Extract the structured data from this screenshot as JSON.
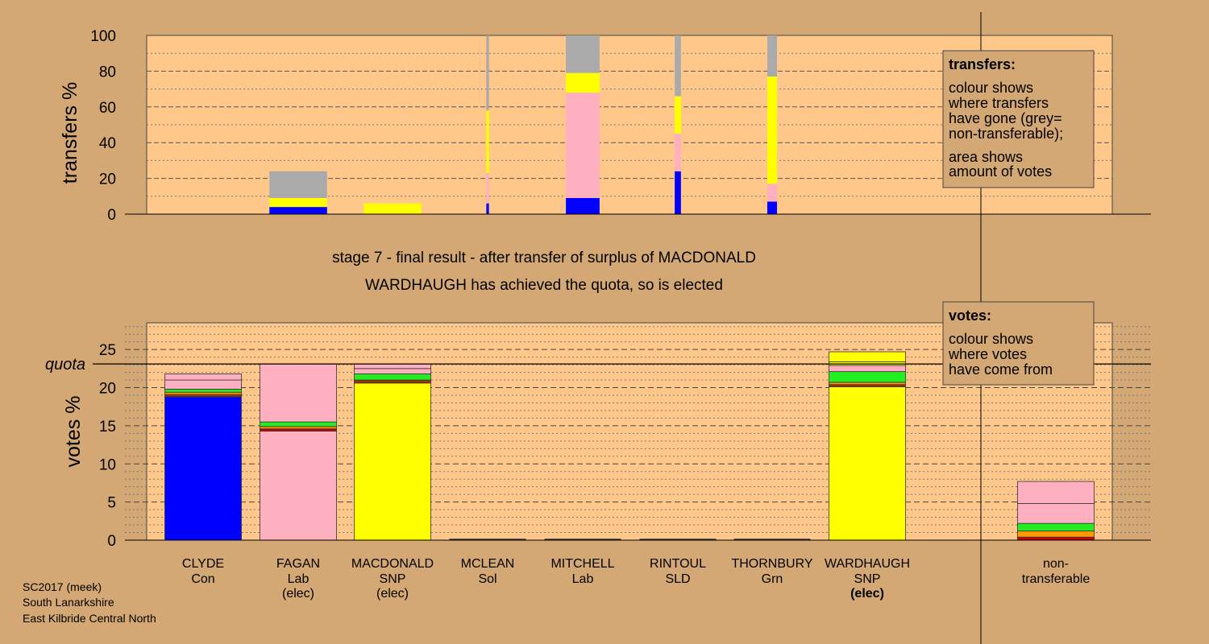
{
  "colors": {
    "page_bg": "#d4a874",
    "plot_bg": "#ffc88a",
    "con": "#0000ff",
    "lab": "#ffb0c0",
    "snp": "#ffff00",
    "grn": "#22ee22",
    "sld": "#ff9900",
    "sol": "#cc0000",
    "other": "#993300",
    "nontransferable": "#aaaaaa"
  },
  "stage_title": "stage 7 - final result - after transfer of surplus of MACDONALD",
  "stage_subtitle": "WARDHAUGH has achieved the quota, so is elected",
  "footer": {
    "line1": "SC2017 (meek)",
    "line2": "South Lanarkshire",
    "line3": "East Kilbride Central North"
  },
  "legend_transfers": {
    "title": "transfers:",
    "lines": [
      "colour shows",
      "where transfers",
      "have gone (grey=",
      "non-transferable);",
      "area shows",
      "amount of votes"
    ]
  },
  "legend_votes": {
    "title": "votes:",
    "lines": [
      "colour shows",
      "where votes",
      "have come from"
    ]
  },
  "chart_data": [
    {
      "type": "bar",
      "ylabel": "transfers %",
      "ylim": [
        0,
        100
      ],
      "yticks": [
        0,
        20,
        40,
        60,
        80,
        100
      ],
      "bars": [
        {
          "candidate": "FAGAN",
          "width_share": 0.65,
          "segments": [
            {
              "party": "con",
              "from": 0,
              "to": 4
            },
            {
              "party": "snp",
              "from": 4,
              "to": 9
            },
            {
              "party": "nontransferable",
              "from": 9,
              "to": 24
            }
          ]
        },
        {
          "candidate": "MACDONALD",
          "width_share": 0.65,
          "segments": [
            {
              "party": "snp",
              "from": 0,
              "to": 6
            }
          ]
        },
        {
          "candidate": "MCLEAN",
          "width_share": 0.03,
          "segments": [
            {
              "party": "con",
              "from": 0,
              "to": 6
            },
            {
              "party": "lab",
              "from": 6,
              "to": 23
            },
            {
              "party": "snp",
              "from": 23,
              "to": 58
            },
            {
              "party": "nontransferable",
              "from": 58,
              "to": 100
            }
          ]
        },
        {
          "candidate": "MITCHELL",
          "width_share": 0.38,
          "segments": [
            {
              "party": "con",
              "from": 0,
              "to": 9
            },
            {
              "party": "lab",
              "from": 9,
              "to": 68
            },
            {
              "party": "snp",
              "from": 68,
              "to": 79
            },
            {
              "party": "nontransferable",
              "from": 79,
              "to": 100
            }
          ]
        },
        {
          "candidate": "RINTOUL",
          "width_share": 0.07,
          "segments": [
            {
              "party": "con",
              "from": 0,
              "to": 24
            },
            {
              "party": "lab",
              "from": 24,
              "to": 45
            },
            {
              "party": "snp",
              "from": 45,
              "to": 66
            },
            {
              "party": "nontransferable",
              "from": 66,
              "to": 100
            }
          ]
        },
        {
          "candidate": "THORNBURY",
          "width_share": 0.11,
          "segments": [
            {
              "party": "con",
              "from": 0,
              "to": 7
            },
            {
              "party": "lab",
              "from": 7,
              "to": 17
            },
            {
              "party": "snp",
              "from": 17,
              "to": 77
            },
            {
              "party": "nontransferable",
              "from": 77,
              "to": 100
            }
          ]
        }
      ]
    },
    {
      "type": "bar",
      "ylabel": "votes %",
      "ylim": [
        0,
        28.5
      ],
      "yticks": [
        0,
        5,
        10,
        15,
        20,
        25
      ],
      "quota_label": "quota",
      "quota": 23.1,
      "candidates": [
        {
          "name": "CLYDE",
          "party": "Con",
          "status": "",
          "segments": [
            {
              "party": "con",
              "value": 18.8
            },
            {
              "party": "other",
              "value": 0.3
            },
            {
              "party": "sld",
              "value": 0.3
            },
            {
              "party": "grn",
              "value": 0.4
            },
            {
              "party": "lab",
              "value": 1.2
            },
            {
              "party": "lab",
              "value": 0.8
            }
          ]
        },
        {
          "name": "FAGAN",
          "party": "Lab",
          "status": "(elec)",
          "segments": [
            {
              "party": "lab",
              "value": 14.3
            },
            {
              "party": "sol",
              "value": 0.3
            },
            {
              "party": "sld",
              "value": 0.3
            },
            {
              "party": "grn",
              "value": 0.6
            },
            {
              "party": "lab",
              "value": 7.6
            }
          ]
        },
        {
          "name": "MACDONALD",
          "party": "SNP",
          "status": "(elec)",
          "segments": [
            {
              "party": "snp",
              "value": 20.6
            },
            {
              "party": "other",
              "value": 0.4
            },
            {
              "party": "grn",
              "value": 0.8
            },
            {
              "party": "lab",
              "value": 0.7
            },
            {
              "party": "lab",
              "value": 0.6
            }
          ]
        },
        {
          "name": "MCLEAN",
          "party": "Sol",
          "status": "",
          "segments": []
        },
        {
          "name": "MITCHELL",
          "party": "Lab",
          "status": "",
          "segments": []
        },
        {
          "name": "RINTOUL",
          "party": "SLD",
          "status": "",
          "segments": []
        },
        {
          "name": "THORNBURY",
          "party": "Grn",
          "status": "",
          "segments": []
        },
        {
          "name": "WARDHAUGH",
          "party": "SNP",
          "status": "(elec)",
          "segments": [
            {
              "party": "snp",
              "value": 20.1
            },
            {
              "party": "other",
              "value": 0.3
            },
            {
              "party": "sld",
              "value": 0.3
            },
            {
              "party": "grn",
              "value": 1.4
            },
            {
              "party": "lab",
              "value": 0.8
            },
            {
              "party": "snp",
              "value": 0.5
            },
            {
              "party": "snp",
              "value": 1.3
            }
          ]
        }
      ],
      "nontransferable": {
        "label_line1": "non-",
        "label_line2": "transferable",
        "segments": [
          {
            "party": "sol",
            "value": 0.4
          },
          {
            "party": "sld",
            "value": 0.8
          },
          {
            "party": "grn",
            "value": 1.0
          },
          {
            "party": "lab",
            "value": 2.6
          },
          {
            "party": "lab",
            "value": 2.9
          }
        ]
      }
    }
  ]
}
